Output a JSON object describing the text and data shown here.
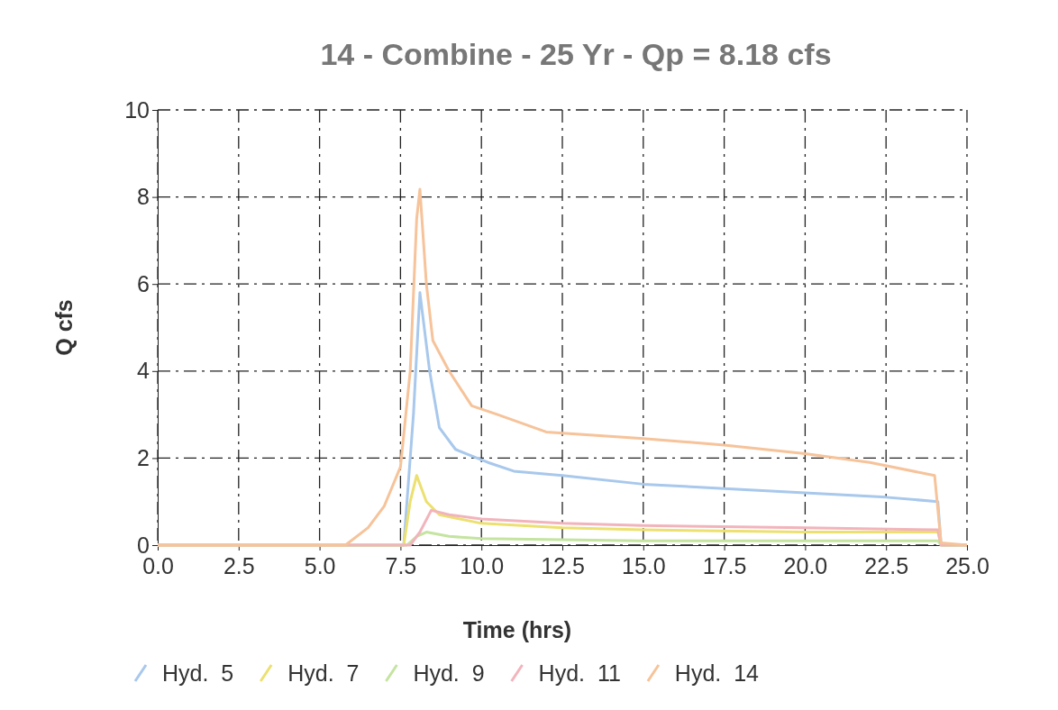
{
  "chart_data": {
    "type": "line",
    "title": "14 - Combine - 25 Yr - Qp = 8.18 cfs",
    "xlabel": "Time (hrs)",
    "ylabel": "Q cfs",
    "xlim": [
      0,
      25
    ],
    "ylim": [
      0,
      10
    ],
    "xticks": [
      {
        "value": 0,
        "label": "0.0"
      },
      {
        "value": 2.5,
        "label": "2.5"
      },
      {
        "value": 5,
        "label": "5.0"
      },
      {
        "value": 7.5,
        "label": "7.5"
      },
      {
        "value": 10,
        "label": "10.0"
      },
      {
        "value": 12.5,
        "label": "12.5"
      },
      {
        "value": 15,
        "label": "15.0"
      },
      {
        "value": 17.5,
        "label": "17.5"
      },
      {
        "value": 20,
        "label": "20.0"
      },
      {
        "value": 22.5,
        "label": "22.5"
      },
      {
        "value": 25,
        "label": "25.0"
      }
    ],
    "yticks": [
      0,
      2,
      4,
      6,
      8,
      10
    ],
    "grid": true,
    "legend": "bottom",
    "line_style": "solid",
    "marker": "none",
    "series": [
      {
        "name": "Hyd.  5",
        "color": "#a8c8ec",
        "x": [
          0,
          7.6,
          7.9,
          8.1,
          8.4,
          8.7,
          9.2,
          10.2,
          11,
          12.5,
          15,
          17.5,
          20,
          22.5,
          24.1,
          24.2,
          25
        ],
        "values": [
          0,
          0,
          3,
          5.8,
          4,
          2.7,
          2.2,
          1.9,
          1.7,
          1.6,
          1.4,
          1.3,
          1.2,
          1.1,
          1,
          0,
          0
        ]
      },
      {
        "name": "Hyd.  7",
        "color": "#ece070",
        "x": [
          0,
          7.6,
          7.8,
          8,
          8.3,
          8.7,
          10,
          12.5,
          15,
          20,
          24.1,
          24.2,
          25
        ],
        "values": [
          0,
          0,
          1,
          1.6,
          1,
          0.7,
          0.5,
          0.4,
          0.35,
          0.3,
          0.3,
          0,
          0
        ]
      },
      {
        "name": "Hyd.  9",
        "color": "#c4e4a0",
        "x": [
          0,
          7.7,
          8,
          8.3,
          9,
          10,
          15,
          20,
          24.1,
          24.2,
          25
        ],
        "values": [
          0,
          0,
          0.2,
          0.3,
          0.2,
          0.15,
          0.1,
          0.1,
          0.1,
          0,
          0
        ]
      },
      {
        "name": "Hyd.  11",
        "color": "#f2b4bc",
        "x": [
          0,
          7.8,
          8.1,
          8.45,
          9,
          10,
          12.5,
          15,
          20,
          24.1,
          24.2,
          25
        ],
        "values": [
          0,
          0,
          0.3,
          0.8,
          0.7,
          0.6,
          0.5,
          0.45,
          0.4,
          0.35,
          0,
          0
        ]
      },
      {
        "name": "Hyd.  14",
        "color": "#f6c39a",
        "x": [
          0,
          5.8,
          6.5,
          7,
          7.5,
          7.8,
          8,
          8.1,
          8.3,
          8.5,
          9,
          9.7,
          10.5,
          12,
          15,
          17.5,
          20,
          22,
          24,
          24.2,
          25
        ],
        "values": [
          0,
          0,
          0.4,
          0.9,
          1.8,
          4,
          7.5,
          8.18,
          6,
          4.7,
          4,
          3.2,
          3,
          2.6,
          2.45,
          2.3,
          2.1,
          1.9,
          1.6,
          0.05,
          0
        ]
      }
    ]
  }
}
